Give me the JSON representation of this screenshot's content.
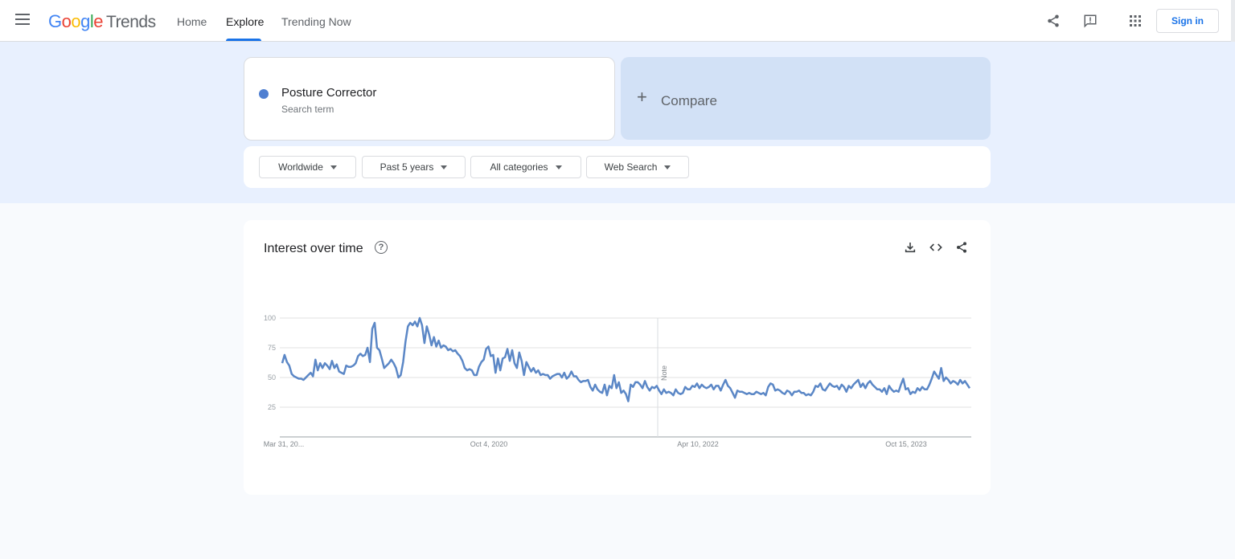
{
  "header": {
    "menu_icon": "menu-icon",
    "logo_google": "Google",
    "logo_trends": "Trends",
    "tabs": [
      {
        "label": "Home",
        "active": false
      },
      {
        "label": "Explore",
        "active": true
      },
      {
        "label": "Trending Now",
        "active": false
      }
    ],
    "share_icon": "share-icon",
    "feedback_icon": "feedback-icon",
    "apps_icon": "apps-grid-icon",
    "sign_in_label": "Sign in",
    "accent_color": "#1a73e8"
  },
  "search": {
    "term": "Posture Corrector",
    "term_type": "Search term",
    "term_color": "#4f7fd1",
    "compare_label": "Compare"
  },
  "filters": {
    "region": "Worldwide",
    "time_range": "Past 5 years",
    "category": "All categories",
    "property": "Web Search"
  },
  "chart": {
    "title": "Interest over time",
    "help_icon": "help-icon",
    "download_icon": "download-icon",
    "embed_icon": "embed-code-icon",
    "share_icon": "share-icon"
  },
  "chart_data": {
    "type": "line",
    "xlabel": "",
    "ylabel": "",
    "ylim": [
      0,
      100
    ],
    "yticks": [
      25,
      50,
      75,
      100
    ],
    "xtick_labels": [
      "Mar 31, 20...",
      "Oct 4, 2020",
      "Apr 10, 2022",
      "Oct 15, 2023"
    ],
    "note_label": "Note",
    "grid": true,
    "line_color": "#5b87c6",
    "series": [
      {
        "values": [
          62,
          69,
          63,
          60,
          53,
          51,
          50,
          49,
          49,
          48,
          50,
          52,
          54,
          51,
          65,
          56,
          62,
          58,
          62,
          60,
          57,
          64,
          58,
          61,
          55,
          54,
          53,
          60,
          59,
          59,
          60,
          62,
          68,
          70,
          68,
          69,
          75,
          63,
          91,
          96,
          75,
          73,
          66,
          58,
          60,
          62,
          65,
          62,
          58,
          50,
          52,
          63,
          80,
          93,
          96,
          94,
          97,
          93,
          100,
          94,
          79,
          93,
          86,
          77,
          84,
          76,
          81,
          75,
          77,
          76,
          73,
          74,
          72,
          73,
          70,
          68,
          64,
          58,
          56,
          57,
          56,
          52,
          52,
          59,
          63,
          65,
          74,
          76,
          68,
          69,
          54,
          66,
          56,
          66,
          67,
          74,
          64,
          73,
          62,
          58,
          71,
          64,
          52,
          63,
          59,
          55,
          58,
          54,
          56,
          52,
          53,
          52,
          52,
          49,
          51,
          52,
          53,
          53,
          50,
          54,
          49,
          51,
          55,
          51,
          51,
          48,
          46,
          47,
          47,
          48,
          42,
          39,
          44,
          40,
          38,
          37,
          44,
          35,
          43,
          41,
          52,
          41,
          46,
          37,
          39,
          36,
          30,
          44,
          42,
          46,
          46,
          44,
          41,
          47,
          42,
          39,
          42,
          41,
          43,
          39,
          36,
          40,
          37,
          38,
          37,
          35,
          40,
          37,
          36,
          37,
          42,
          40,
          40,
          43,
          42,
          45,
          41,
          44,
          42,
          41,
          42,
          44,
          40,
          43,
          43,
          39,
          44,
          48,
          43,
          41,
          37,
          33,
          39,
          38,
          38,
          37,
          36,
          37,
          36,
          36,
          38,
          37,
          36,
          37,
          35,
          42,
          45,
          44,
          39,
          40,
          39,
          37,
          36,
          39,
          38,
          35,
          38,
          38,
          39,
          37,
          37,
          35,
          36,
          35,
          38,
          43,
          42,
          45,
          40,
          39,
          42,
          45,
          43,
          42,
          43,
          40,
          44,
          42,
          38,
          43,
          41,
          44,
          46,
          48,
          42,
          45,
          41,
          45,
          47,
          44,
          42,
          40,
          40,
          38,
          41,
          36,
          43,
          40,
          38,
          39,
          38,
          44,
          49,
          40,
          41,
          36,
          38,
          37,
          41,
          39,
          42,
          40,
          40,
          44,
          49,
          55,
          52,
          49,
          58,
          47,
          50,
          48,
          45,
          47,
          46,
          44,
          48,
          45,
          47,
          44,
          41
        ]
      }
    ]
  }
}
